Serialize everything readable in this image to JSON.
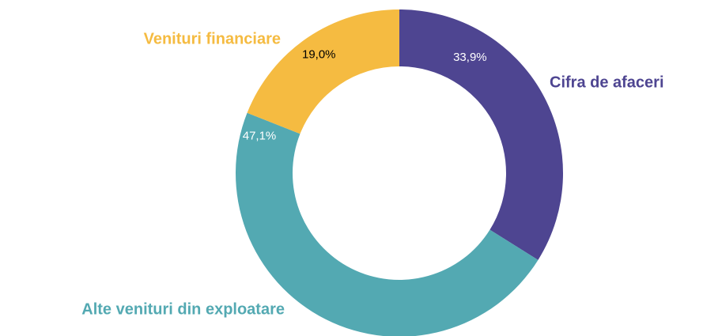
{
  "chart_data": {
    "type": "donut",
    "categories": [
      "Cifra de afaceri",
      "Alte venituri din exploatare",
      "Venituri financiare"
    ],
    "values": [
      33.9,
      47.1,
      19.0
    ],
    "value_labels": [
      "33,9%",
      "47,1%",
      "19,0%"
    ],
    "colors": [
      "#4e4591",
      "#53a9b2",
      "#f5bb41"
    ]
  }
}
